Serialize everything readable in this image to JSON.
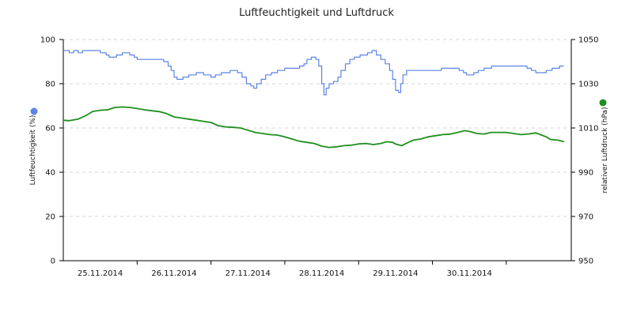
{
  "chart_data": {
    "type": "line",
    "title": "Luftfeuchtigkeit und Luftdruck",
    "y_left": {
      "label": "Luftfeuchtigkeit (%)",
      "lim": [
        0,
        100
      ],
      "ticks": [
        0,
        20,
        40,
        60,
        80,
        100
      ]
    },
    "y_right": {
      "label": "relativer Luftdruck (hPa)",
      "lim": [
        950,
        1050
      ],
      "ticks": [
        950,
        970,
        990,
        1010,
        1030,
        1050
      ]
    },
    "x": {
      "range_days": [
        0,
        6.88
      ],
      "date_labels": [
        "25.11.2014",
        "26.11.2014",
        "27.11.2014",
        "28.11.2014",
        "29.11.2014",
        "30.11.2014"
      ],
      "label_positions_days": [
        0.5,
        1.5,
        2.5,
        3.5,
        4.5,
        5.5
      ],
      "tick_positions_days": [
        1,
        2,
        3,
        4,
        5,
        6
      ]
    },
    "grid": true,
    "series": [
      {
        "name": "Luftfeuchtigkeit (%)",
        "axis": "left",
        "color": "#5b84e6",
        "step": true,
        "points": [
          [
            0,
            95
          ],
          [
            0.08,
            94
          ],
          [
            0.14,
            95
          ],
          [
            0.2,
            94
          ],
          [
            0.26,
            95
          ],
          [
            0.42,
            95
          ],
          [
            0.5,
            94
          ],
          [
            0.58,
            93
          ],
          [
            0.62,
            92
          ],
          [
            0.72,
            93
          ],
          [
            0.8,
            94
          ],
          [
            0.9,
            93
          ],
          [
            0.96,
            92
          ],
          [
            1.0,
            91
          ],
          [
            1.2,
            91
          ],
          [
            1.36,
            90
          ],
          [
            1.42,
            88
          ],
          [
            1.46,
            86
          ],
          [
            1.5,
            83
          ],
          [
            1.54,
            82
          ],
          [
            1.62,
            83
          ],
          [
            1.7,
            84
          ],
          [
            1.8,
            85
          ],
          [
            1.9,
            84
          ],
          [
            2.0,
            83
          ],
          [
            2.06,
            84
          ],
          [
            2.14,
            85
          ],
          [
            2.26,
            86
          ],
          [
            2.36,
            85
          ],
          [
            2.42,
            83
          ],
          [
            2.48,
            80
          ],
          [
            2.54,
            79
          ],
          [
            2.58,
            78
          ],
          [
            2.62,
            80
          ],
          [
            2.68,
            82
          ],
          [
            2.74,
            84
          ],
          [
            2.82,
            85
          ],
          [
            2.9,
            86
          ],
          [
            3.0,
            87
          ],
          [
            3.1,
            87
          ],
          [
            3.2,
            88
          ],
          [
            3.26,
            89
          ],
          [
            3.3,
            91
          ],
          [
            3.36,
            92
          ],
          [
            3.42,
            91
          ],
          [
            3.46,
            88
          ],
          [
            3.5,
            80
          ],
          [
            3.53,
            75
          ],
          [
            3.56,
            78
          ],
          [
            3.6,
            80
          ],
          [
            3.66,
            81
          ],
          [
            3.72,
            83
          ],
          [
            3.76,
            86
          ],
          [
            3.82,
            89
          ],
          [
            3.88,
            91
          ],
          [
            3.94,
            92
          ],
          [
            4.02,
            93
          ],
          [
            4.12,
            94
          ],
          [
            4.18,
            95
          ],
          [
            4.24,
            93
          ],
          [
            4.3,
            91
          ],
          [
            4.36,
            89
          ],
          [
            4.42,
            86
          ],
          [
            4.46,
            82
          ],
          [
            4.5,
            77
          ],
          [
            4.54,
            76
          ],
          [
            4.57,
            80
          ],
          [
            4.6,
            84
          ],
          [
            4.65,
            86
          ],
          [
            4.8,
            86
          ],
          [
            5.0,
            86
          ],
          [
            5.12,
            87
          ],
          [
            5.28,
            87
          ],
          [
            5.36,
            86
          ],
          [
            5.42,
            85
          ],
          [
            5.46,
            84
          ],
          [
            5.56,
            85
          ],
          [
            5.62,
            86
          ],
          [
            5.7,
            87
          ],
          [
            5.8,
            88
          ],
          [
            5.9,
            88
          ],
          [
            6.2,
            88
          ],
          [
            6.28,
            87
          ],
          [
            6.34,
            86
          ],
          [
            6.4,
            85
          ],
          [
            6.54,
            86
          ],
          [
            6.62,
            87
          ],
          [
            6.72,
            88
          ],
          [
            6.78,
            88
          ]
        ]
      },
      {
        "name": "relativer Luftdruck (hPa)",
        "axis": "right",
        "color": "#1f8f1f",
        "step": false,
        "points": [
          [
            0,
            1013.5
          ],
          [
            0.08,
            1013.3
          ],
          [
            0.2,
            1014
          ],
          [
            0.3,
            1015.5
          ],
          [
            0.4,
            1017.5
          ],
          [
            0.5,
            1018
          ],
          [
            0.6,
            1018.2
          ],
          [
            0.7,
            1019.3
          ],
          [
            0.8,
            1019.5
          ],
          [
            0.9,
            1019.3
          ],
          [
            1.0,
            1018.8
          ],
          [
            1.1,
            1018.2
          ],
          [
            1.2,
            1017.8
          ],
          [
            1.3,
            1017.4
          ],
          [
            1.4,
            1016.5
          ],
          [
            1.5,
            1015
          ],
          [
            1.6,
            1014.5
          ],
          [
            1.7,
            1014
          ],
          [
            1.8,
            1013.5
          ],
          [
            1.9,
            1013
          ],
          [
            2.0,
            1012.5
          ],
          [
            2.1,
            1011
          ],
          [
            2.2,
            1010.5
          ],
          [
            2.3,
            1010.3
          ],
          [
            2.4,
            1010
          ],
          [
            2.5,
            1009
          ],
          [
            2.6,
            1008
          ],
          [
            2.7,
            1007.5
          ],
          [
            2.8,
            1007
          ],
          [
            2.9,
            1006.8
          ],
          [
            3.0,
            1006
          ],
          [
            3.1,
            1005
          ],
          [
            3.2,
            1004
          ],
          [
            3.3,
            1003.5
          ],
          [
            3.4,
            1003
          ],
          [
            3.5,
            1001.8
          ],
          [
            3.6,
            1001.2
          ],
          [
            3.7,
            1001.5
          ],
          [
            3.8,
            1002
          ],
          [
            3.9,
            1002.2
          ],
          [
            4.0,
            1002.8
          ],
          [
            4.1,
            1003
          ],
          [
            4.2,
            1002.5
          ],
          [
            4.3,
            1003
          ],
          [
            4.38,
            1003.8
          ],
          [
            4.46,
            1003.5
          ],
          [
            4.5,
            1002.8
          ],
          [
            4.58,
            1002
          ],
          [
            4.66,
            1003.3
          ],
          [
            4.74,
            1004.5
          ],
          [
            4.84,
            1005
          ],
          [
            4.94,
            1006
          ],
          [
            5.04,
            1006.5
          ],
          [
            5.14,
            1007
          ],
          [
            5.24,
            1007.2
          ],
          [
            5.34,
            1008
          ],
          [
            5.44,
            1008.8
          ],
          [
            5.52,
            1008.3
          ],
          [
            5.6,
            1007.5
          ],
          [
            5.7,
            1007.3
          ],
          [
            5.8,
            1008
          ],
          [
            5.9,
            1008
          ],
          [
            6.0,
            1008
          ],
          [
            6.1,
            1007.5
          ],
          [
            6.2,
            1007
          ],
          [
            6.3,
            1007.3
          ],
          [
            6.4,
            1007.8
          ],
          [
            6.46,
            1007
          ],
          [
            6.54,
            1006
          ],
          [
            6.6,
            1004.8
          ],
          [
            6.7,
            1004.5
          ],
          [
            6.78,
            1003.8
          ]
        ]
      }
    ]
  }
}
